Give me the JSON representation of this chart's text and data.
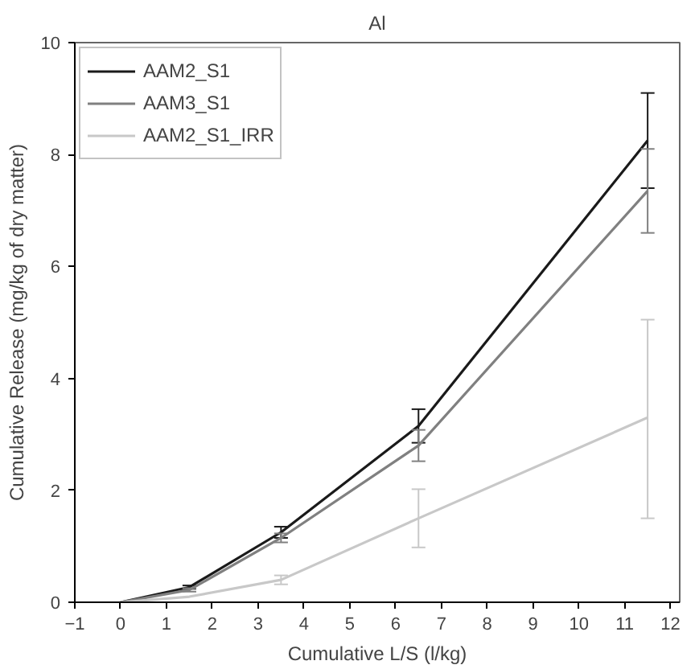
{
  "chart_data": {
    "type": "line",
    "title": "Al",
    "xlabel": "Cumulative L/S (l/kg)",
    "ylabel": "Cumulative Release (mg/kg of dry matter)",
    "x": [
      0,
      1.5,
      3.5,
      6.5,
      11.5
    ],
    "series": [
      {
        "name": "AAM2_S1",
        "color": "#1a1a1a",
        "values": [
          0,
          0.27,
          1.25,
          3.15,
          8.25
        ],
        "errors": [
          null,
          0.03,
          0.1,
          0.3,
          0.85
        ]
      },
      {
        "name": "AAM3_S1",
        "color": "#808080",
        "values": [
          0,
          0.22,
          1.15,
          2.8,
          7.35
        ],
        "errors": [
          null,
          0.03,
          0.08,
          0.28,
          0.75
        ]
      },
      {
        "name": "AAM2_S1_IRR",
        "color": "#c8c8c8",
        "values": [
          0,
          0.1,
          0.4,
          1.5,
          3.3
        ],
        "errors": [
          null,
          null,
          0.08,
          [
            0.98,
            2.02
          ],
          [
            1.5,
            5.05
          ]
        ]
      }
    ],
    "xlim": [
      -1,
      12.2
    ],
    "ylim": [
      0,
      10
    ],
    "xticks": [
      {
        "value": -1,
        "label": "−1"
      },
      0,
      1,
      2,
      3,
      4,
      5,
      6,
      7,
      8,
      9,
      10,
      11,
      12
    ],
    "yticks": [
      0,
      2,
      4,
      6,
      8,
      10
    ],
    "grid": false,
    "legend": "top left",
    "marker": "none",
    "line_style": "solid"
  }
}
